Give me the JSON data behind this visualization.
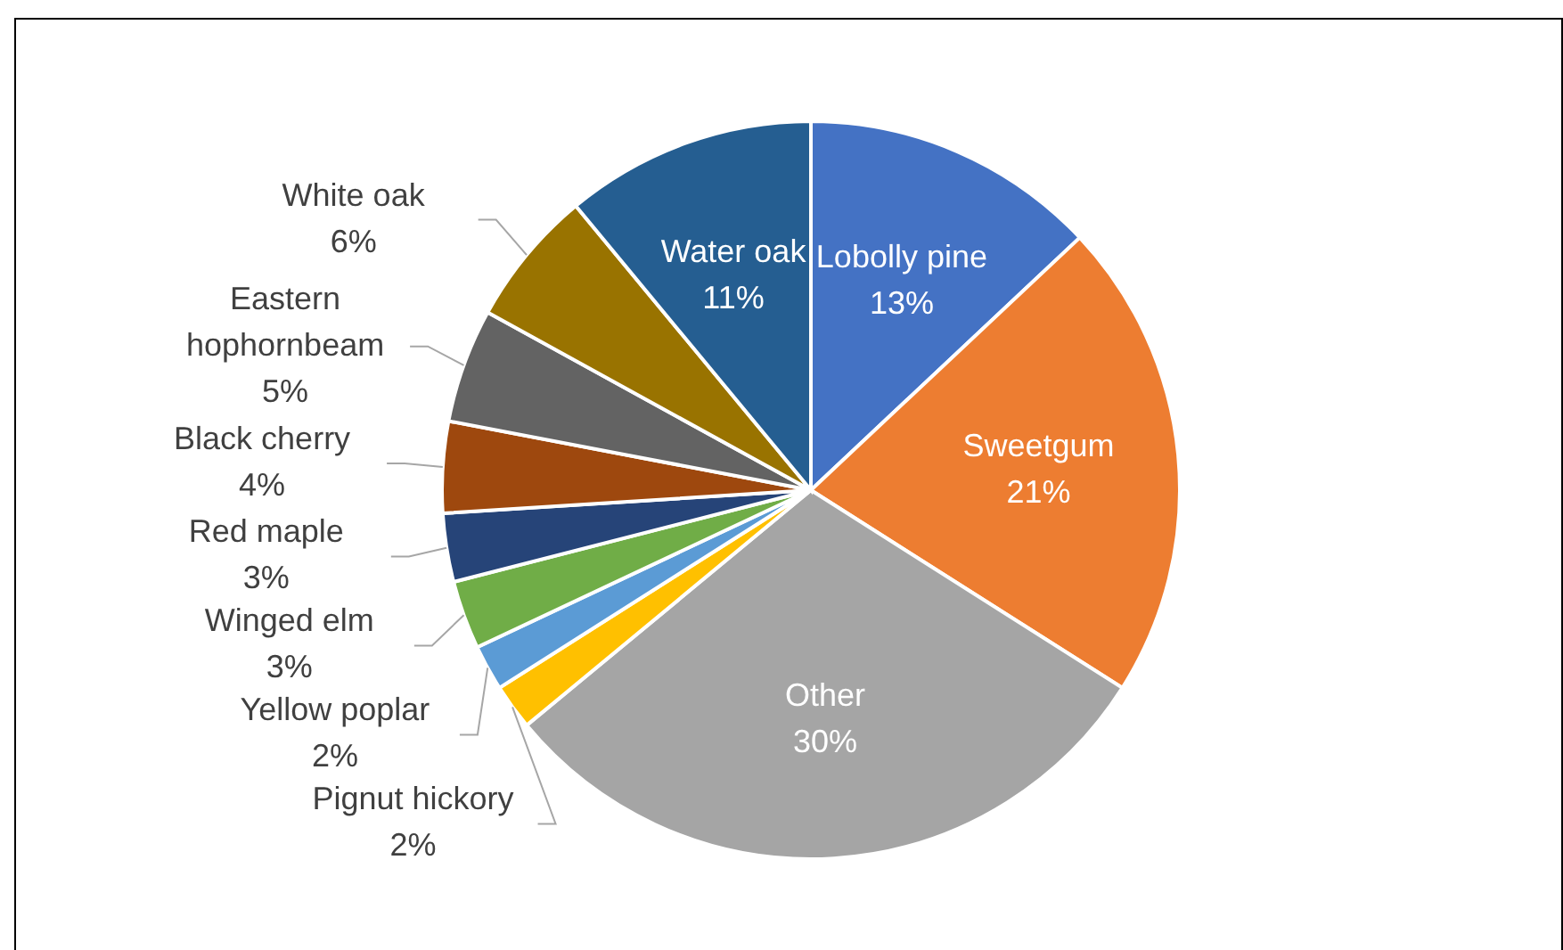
{
  "chart_data": {
    "type": "pie",
    "categories": [
      "Lobolly pine",
      "Sweetgum",
      "Other",
      "Pignut hickory",
      "Yellow poplar",
      "Winged elm",
      "Red maple",
      "Black cherry",
      "Eastern hophornbeam",
      "White oak",
      "Water oak"
    ],
    "values": [
      13,
      21,
      30,
      2,
      2,
      3,
      3,
      4,
      5,
      6,
      11
    ],
    "colors": [
      "#4472c4",
      "#ed7d31",
      "#a5a5a5",
      "#ffc000",
      "#5b9bd5",
      "#70ad47",
      "#264478",
      "#9e480e",
      "#636363",
      "#997300",
      "#255e91"
    ],
    "value_labels": [
      "13%",
      "21%",
      "30%",
      "2%",
      "2%",
      "3%",
      "3%",
      "4%",
      "5%",
      "6%",
      "11%"
    ]
  }
}
